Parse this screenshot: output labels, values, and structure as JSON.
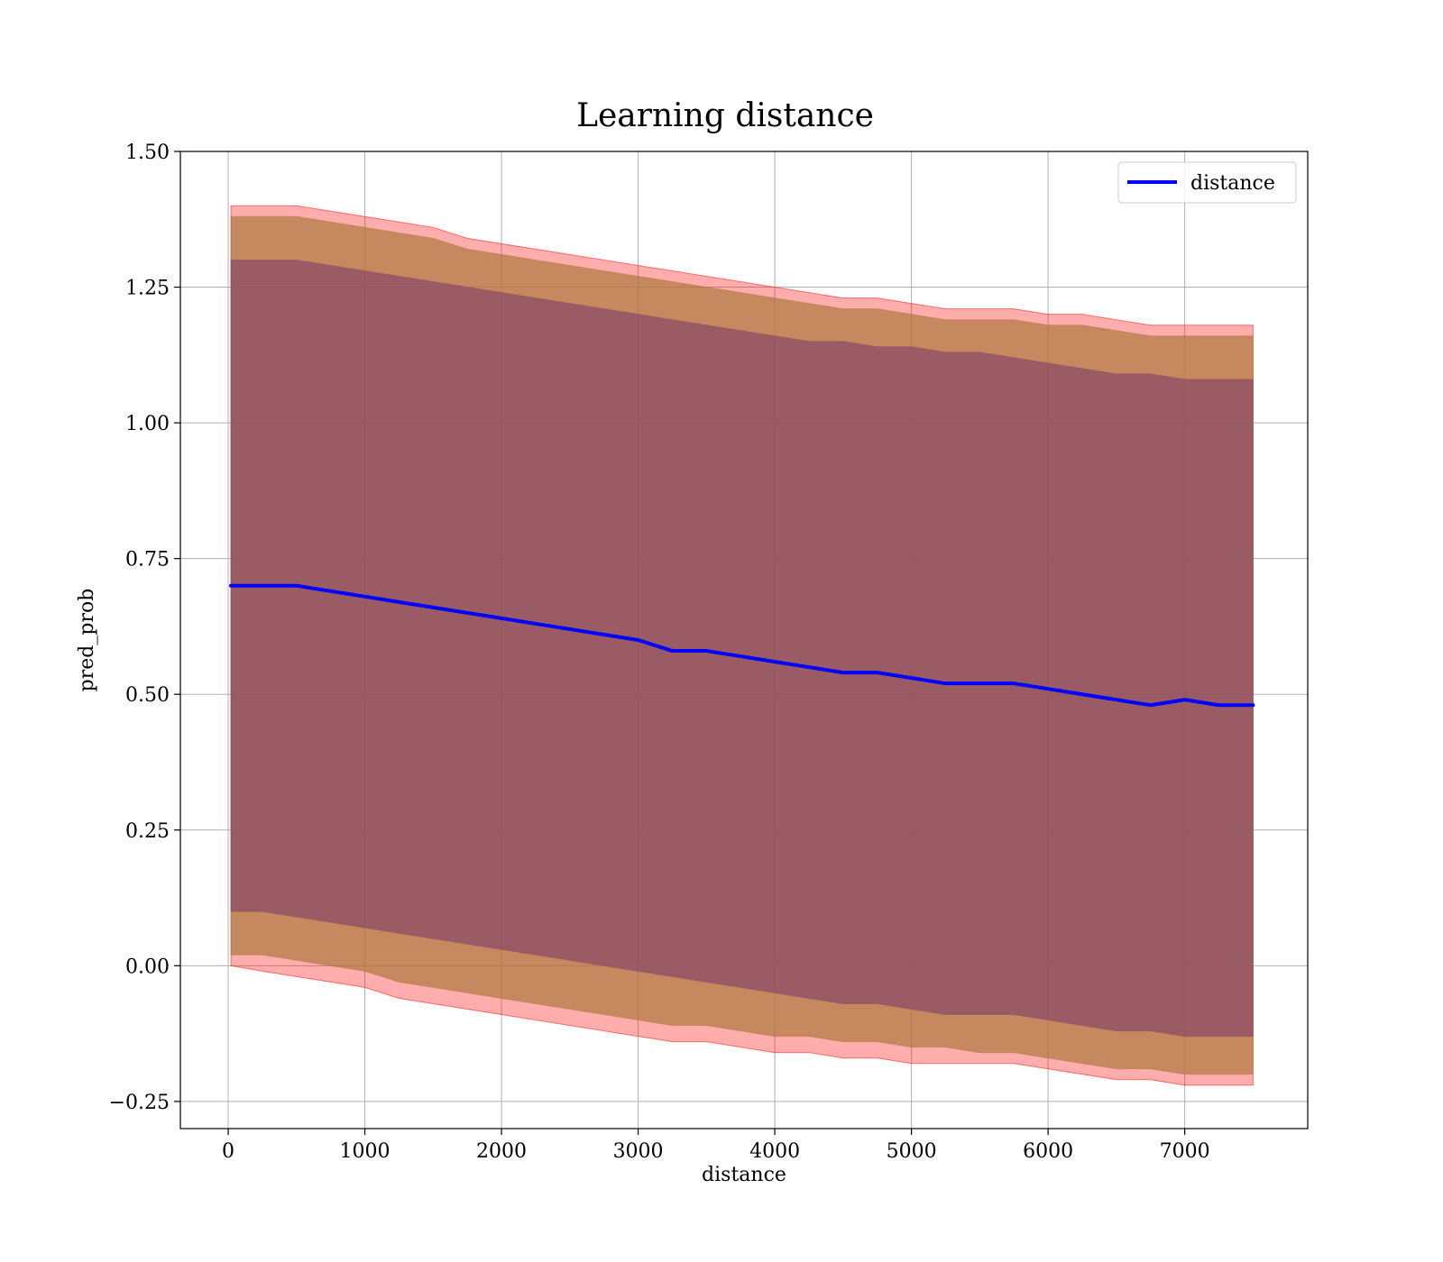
{
  "chart_data": {
    "type": "line",
    "title": "Learning distance",
    "xlabel": "distance",
    "ylabel": "pred_prob",
    "xlim": [
      -350,
      7900
    ],
    "ylim": [
      -0.3,
      1.5
    ],
    "xticks": [
      0,
      1000,
      2000,
      3000,
      4000,
      5000,
      6000,
      7000
    ],
    "xtick_labels": [
      "0",
      "1000",
      "2000",
      "3000",
      "4000",
      "5000",
      "6000",
      "7000"
    ],
    "yticks": [
      -0.25,
      0.0,
      0.25,
      0.5,
      0.75,
      1.0,
      1.25,
      1.5
    ],
    "ytick_labels": [
      "−0.25",
      "0.00",
      "0.25",
      "0.50",
      "0.75",
      "1.00",
      "1.25",
      "1.50"
    ],
    "grid": true,
    "legend_position": "top-right",
    "legend": [
      "distance"
    ],
    "x": [
      20,
      250,
      500,
      750,
      1000,
      1250,
      1500,
      1750,
      2000,
      2250,
      2500,
      2750,
      3000,
      3250,
      3500,
      3750,
      4000,
      4250,
      4500,
      4750,
      5000,
      5250,
      5500,
      5750,
      6000,
      6250,
      6500,
      6750,
      7000,
      7250,
      7500
    ],
    "series": [
      {
        "name": "distance",
        "color": "#0000ff",
        "role": "line",
        "values": [
          0.7,
          0.7,
          0.7,
          0.69,
          0.68,
          0.67,
          0.66,
          0.65,
          0.64,
          0.63,
          0.62,
          0.61,
          0.6,
          0.58,
          0.58,
          0.57,
          0.56,
          0.55,
          0.54,
          0.54,
          0.53,
          0.52,
          0.52,
          0.52,
          0.51,
          0.5,
          0.49,
          0.48,
          0.49,
          0.48,
          0.48
        ]
      },
      {
        "color": "#ff0000",
        "role": "band-outer",
        "lower": [
          0.0,
          -0.01,
          -0.02,
          -0.03,
          -0.04,
          -0.06,
          -0.07,
          -0.08,
          -0.09,
          -0.1,
          -0.11,
          -0.12,
          -0.13,
          -0.14,
          -0.14,
          -0.15,
          -0.16,
          -0.16,
          -0.17,
          -0.17,
          -0.18,
          -0.18,
          -0.18,
          -0.18,
          -0.19,
          -0.2,
          -0.21,
          -0.21,
          -0.22,
          -0.22,
          -0.22
        ],
        "upper": [
          1.4,
          1.4,
          1.4,
          1.39,
          1.38,
          1.37,
          1.36,
          1.34,
          1.33,
          1.32,
          1.31,
          1.3,
          1.29,
          1.28,
          1.27,
          1.26,
          1.25,
          1.24,
          1.23,
          1.23,
          1.22,
          1.21,
          1.21,
          1.21,
          1.2,
          1.2,
          1.19,
          1.18,
          1.18,
          1.18,
          1.18
        ]
      },
      {
        "color": "#b07a40",
        "role": "band-middle",
        "lower": [
          0.02,
          0.02,
          0.01,
          0.0,
          -0.01,
          -0.03,
          -0.04,
          -0.05,
          -0.06,
          -0.07,
          -0.08,
          -0.09,
          -0.1,
          -0.11,
          -0.11,
          -0.12,
          -0.13,
          -0.13,
          -0.14,
          -0.14,
          -0.15,
          -0.15,
          -0.16,
          -0.16,
          -0.17,
          -0.18,
          -0.19,
          -0.19,
          -0.2,
          -0.2,
          -0.2
        ],
        "upper": [
          1.38,
          1.38,
          1.38,
          1.37,
          1.36,
          1.35,
          1.34,
          1.32,
          1.31,
          1.3,
          1.29,
          1.28,
          1.27,
          1.26,
          1.25,
          1.24,
          1.23,
          1.22,
          1.21,
          1.21,
          1.2,
          1.19,
          1.19,
          1.19,
          1.18,
          1.18,
          1.17,
          1.16,
          1.16,
          1.16,
          1.16
        ]
      },
      {
        "color": "#8a4a66",
        "role": "band-inner",
        "lower": [
          0.1,
          0.1,
          0.09,
          0.08,
          0.07,
          0.06,
          0.05,
          0.04,
          0.03,
          0.02,
          0.01,
          0.0,
          -0.01,
          -0.02,
          -0.03,
          -0.04,
          -0.05,
          -0.06,
          -0.07,
          -0.07,
          -0.08,
          -0.09,
          -0.09,
          -0.09,
          -0.1,
          -0.11,
          -0.12,
          -0.12,
          -0.13,
          -0.13,
          -0.13
        ],
        "upper": [
          1.3,
          1.3,
          1.3,
          1.29,
          1.28,
          1.27,
          1.26,
          1.25,
          1.24,
          1.23,
          1.22,
          1.21,
          1.2,
          1.19,
          1.18,
          1.17,
          1.16,
          1.15,
          1.15,
          1.14,
          1.14,
          1.13,
          1.13,
          1.12,
          1.11,
          1.1,
          1.09,
          1.09,
          1.08,
          1.08,
          1.08
        ]
      }
    ]
  }
}
